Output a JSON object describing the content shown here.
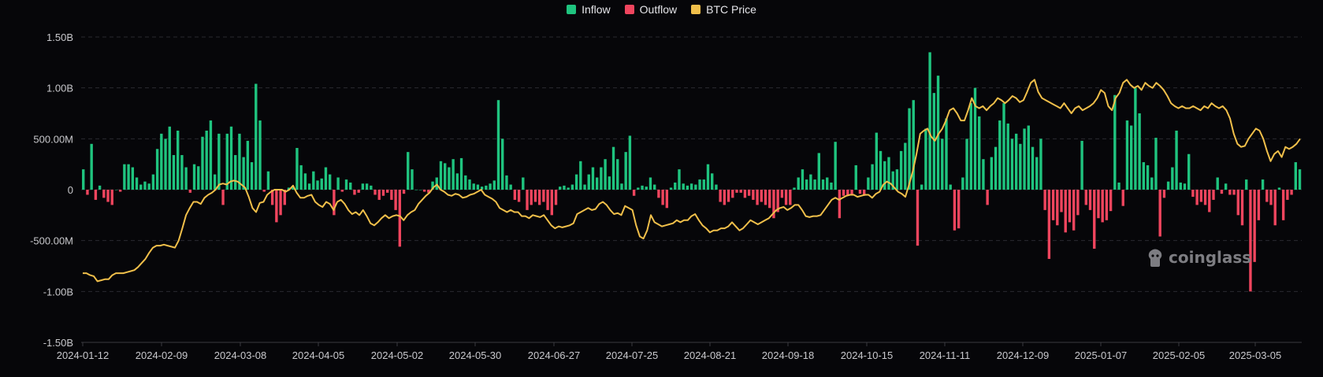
{
  "legend": [
    {
      "label": "Inflow",
      "color": "#1fc47f"
    },
    {
      "label": "Outflow",
      "color": "#f0455e"
    },
    {
      "label": "BTC Price",
      "color": "#f0bf4a"
    }
  ],
  "watermark": {
    "text": "coinglass",
    "icon": "coinglass-logo-icon"
  },
  "colors": {
    "background": "#060609",
    "grid": "#2a2a30",
    "axis_text": "#c8c8cc"
  },
  "chart_data": {
    "type": "bar",
    "y_ticks": [
      "1.50B",
      "1.00B",
      "500.00M",
      "0",
      "-500.00M",
      "-1.00B",
      "-1.50B"
    ],
    "ylim": [
      -1.5,
      1.5
    ],
    "y_unit": "billion USD",
    "x_ticks": [
      "2024-01-12",
      "2024-02-09",
      "2024-03-08",
      "2024-04-05",
      "2024-05-02",
      "2024-05-30",
      "2024-06-27",
      "2024-07-25",
      "2024-08-21",
      "2024-09-18",
      "2024-10-15",
      "2024-11-11",
      "2024-12-09",
      "2025-01-07",
      "2025-02-05",
      "2025-03-05"
    ],
    "flows": [
      0.2,
      -0.05,
      0.45,
      -0.1,
      0.04,
      -0.08,
      -0.12,
      -0.15,
      0,
      -0.02,
      0.25,
      0.25,
      0.22,
      0.12,
      0.05,
      0.08,
      0.06,
      0.15,
      0.4,
      0.55,
      0.5,
      0.62,
      0.34,
      0.58,
      0.34,
      0.22,
      -0.03,
      0.25,
      0.23,
      0.52,
      0.58,
      0.68,
      0.15,
      0.55,
      -0.15,
      0.55,
      0.62,
      0.34,
      0.55,
      0.32,
      0.48,
      0.27,
      1.04,
      0.68,
      -0.02,
      0.18,
      -0.15,
      -0.32,
      -0.25,
      -0.15,
      0.02,
      0.03,
      0.41,
      0.24,
      0.16,
      0.06,
      0.18,
      0.09,
      0.11,
      0.22,
      0.15,
      -0.25,
      0.12,
      -0.02,
      0.1,
      0.07,
      -0.05,
      -0.03,
      0.06,
      0.06,
      0.04,
      -0.05,
      -0.1,
      -0.06,
      -0.03,
      -0.1,
      -0.2,
      -0.56,
      -0.04,
      0.37,
      0.2,
      0,
      0,
      -0.02,
      -0.03,
      0.08,
      0.12,
      0.28,
      0.26,
      0.22,
      0.3,
      0.16,
      0.31,
      0.14,
      0.1,
      0.06,
      0.05,
      0.03,
      0.04,
      0.06,
      0.09,
      0.88,
      0.5,
      0.14,
      0.05,
      -0.1,
      -0.12,
      0.12,
      -0.2,
      -0.15,
      -0.12,
      -0.15,
      -0.12,
      -0.2,
      -0.25,
      -0.15,
      0.03,
      0.04,
      0.02,
      0.05,
      0.15,
      0.28,
      0.05,
      0.15,
      0.22,
      0.12,
      0.22,
      0.3,
      0.13,
      0.42,
      0.3,
      0.06,
      0.37,
      0.53,
      -0.06,
      0.02,
      0.04,
      0.03,
      0.12,
      0.05,
      -0.08,
      -0.15,
      -0.18,
      0.02,
      0.07,
      0.2,
      0.06,
      0.04,
      0.06,
      0.05,
      0.1,
      0.1,
      0.25,
      0.16,
      0.05,
      -0.12,
      -0.15,
      -0.12,
      -0.08,
      -0.03,
      -0.03,
      -0.08,
      -0.06,
      -0.1,
      -0.15,
      -0.12,
      -0.15,
      -0.18,
      -0.28,
      -0.22,
      -0.08,
      -0.15,
      -0.15,
      0.02,
      0.12,
      0.2,
      0.1,
      0.15,
      0.1,
      0.36,
      0.1,
      0.12,
      0.07,
      0.47,
      -0.28,
      -0.06,
      -0.06,
      -0.05,
      0.24,
      -0.04,
      -0.06,
      0.12,
      0.25,
      0.56,
      0.38,
      0.28,
      0.32,
      0.18,
      0.2,
      0.38,
      0.46,
      0.8,
      0.88,
      -0.55,
      0.05,
      0.6,
      1.35,
      0.95,
      1.12,
      0.5,
      0.7,
      0.05,
      -0.4,
      -0.38,
      0.12,
      0.5,
      0.85,
      1.0,
      0.72,
      0.3,
      -0.15,
      0.32,
      0.42,
      0.68,
      0.85,
      0.65,
      0.5,
      0.55,
      0.45,
      0.6,
      0.63,
      0.42,
      0.32,
      0.5,
      -0.2,
      -0.68,
      -0.3,
      -0.35,
      -0.22,
      -0.42,
      -0.32,
      -0.4,
      -0.25,
      0.48,
      -0.15,
      -0.2,
      -0.58,
      -0.28,
      -0.32,
      -0.3,
      -0.21,
      0.93,
      0.07,
      -0.16,
      0.68,
      0.63,
      1.0,
      0.75,
      0.27,
      0.24,
      0.12,
      0.51,
      -0.46,
      -0.08,
      0.08,
      0.22,
      0.58,
      0.07,
      0.06,
      0.35,
      -0.07,
      -0.15,
      -0.12,
      -0.15,
      -0.22,
      -0.1,
      0.12,
      -0.04,
      0.06,
      -0.05,
      -0.05,
      -0.25,
      -0.35,
      0.1,
      -1.0,
      -0.71,
      -0.3,
      0.1,
      -0.12,
      -0.15,
      -0.35,
      0.02,
      -0.3,
      -0.1,
      -0.05,
      0.27,
      0.2
    ],
    "btc_price_scaled": [
      -0.82,
      -0.82,
      -0.84,
      -0.85,
      -0.9,
      -0.89,
      -0.88,
      -0.88,
      -0.84,
      -0.82,
      -0.82,
      -0.82,
      -0.81,
      -0.8,
      -0.79,
      -0.76,
      -0.72,
      -0.68,
      -0.62,
      -0.57,
      -0.55,
      -0.55,
      -0.54,
      -0.55,
      -0.56,
      -0.57,
      -0.5,
      -0.38,
      -0.25,
      -0.18,
      -0.12,
      -0.12,
      -0.14,
      -0.08,
      -0.05,
      -0.03,
      0.0,
      0.05,
      0.06,
      0.05,
      0.08,
      0.09,
      0.08,
      0.05,
      0.02,
      -0.07,
      -0.18,
      -0.22,
      -0.13,
      -0.12,
      -0.05,
      -0.02,
      0.0,
      0.0,
      0.0,
      -0.02,
      0.0,
      0.04,
      -0.03,
      -0.08,
      -0.08,
      -0.06,
      -0.05,
      -0.12,
      -0.15,
      -0.17,
      -0.12,
      -0.14,
      -0.2,
      -0.12,
      -0.1,
      -0.14,
      -0.2,
      -0.24,
      -0.22,
      -0.25,
      -0.2,
      -0.26,
      -0.33,
      -0.35,
      -0.32,
      -0.28,
      -0.25,
      -0.28,
      -0.26,
      -0.25,
      -0.26,
      -0.3,
      -0.25,
      -0.22,
      -0.2,
      -0.14,
      -0.1,
      -0.06,
      -0.03,
      0.02,
      0.05,
      0.0,
      -0.02,
      -0.05,
      -0.06,
      -0.04,
      -0.05,
      -0.08,
      -0.07,
      -0.05,
      -0.04,
      -0.02,
      0.0,
      -0.05,
      -0.07,
      -0.09,
      -0.12,
      -0.18,
      -0.2,
      -0.22,
      -0.2,
      -0.22,
      -0.22,
      -0.26,
      -0.26,
      -0.28,
      -0.25,
      -0.26,
      -0.27,
      -0.25,
      -0.3,
      -0.35,
      -0.38,
      -0.36,
      -0.37,
      -0.36,
      -0.35,
      -0.33,
      -0.24,
      -0.22,
      -0.2,
      -0.18,
      -0.2,
      -0.19,
      -0.14,
      -0.12,
      -0.15,
      -0.2,
      -0.24,
      -0.23,
      -0.25,
      -0.16,
      -0.18,
      -0.2,
      -0.35,
      -0.46,
      -0.48,
      -0.4,
      -0.25,
      -0.32,
      -0.34,
      -0.36,
      -0.35,
      -0.34,
      -0.33,
      -0.3,
      -0.32,
      -0.3,
      -0.3,
      -0.26,
      -0.24,
      -0.3,
      -0.35,
      -0.38,
      -0.42,
      -0.4,
      -0.4,
      -0.38,
      -0.38,
      -0.36,
      -0.32,
      -0.36,
      -0.4,
      -0.38,
      -0.34,
      -0.3,
      -0.32,
      -0.34,
      -0.32,
      -0.3,
      -0.28,
      -0.24,
      -0.2,
      -0.18,
      -0.17,
      -0.2,
      -0.18,
      -0.15,
      -0.15,
      -0.2,
      -0.26,
      -0.27,
      -0.26,
      -0.26,
      -0.25,
      -0.2,
      -0.15,
      -0.1,
      -0.08,
      -0.1,
      -0.08,
      -0.06,
      -0.05,
      -0.05,
      -0.07,
      -0.06,
      -0.05,
      -0.05,
      -0.08,
      -0.04,
      -0.02,
      0.05,
      0.08,
      0.06,
      0.02,
      -0.02,
      -0.04,
      -0.07,
      0.05,
      0.18,
      0.35,
      0.55,
      0.58,
      0.6,
      0.52,
      0.48,
      0.55,
      0.6,
      0.68,
      0.78,
      0.8,
      0.75,
      0.68,
      0.68,
      0.78,
      0.9,
      0.82,
      0.8,
      0.82,
      0.78,
      0.82,
      0.85,
      0.9,
      0.88,
      0.85,
      0.88,
      0.92,
      0.9,
      0.86,
      0.88,
      0.96,
      1.05,
      1.08,
      0.96,
      0.9,
      0.88,
      0.86,
      0.84,
      0.82,
      0.8,
      0.85,
      0.8,
      0.75,
      0.8,
      0.82,
      0.78,
      0.8,
      0.82,
      0.85,
      0.9,
      0.98,
      0.95,
      0.82,
      0.78,
      0.9,
      0.95,
      1.05,
      1.08,
      1.03,
      1.0,
      1.02,
      0.98,
      1.05,
      1.02,
      1.0,
      1.05,
      1.02,
      0.98,
      0.92,
      0.85,
      0.82,
      0.8,
      0.82,
      0.8,
      0.8,
      0.82,
      0.8,
      0.78,
      0.82,
      0.8,
      0.85,
      0.82,
      0.8,
      0.82,
      0.78,
      0.7,
      0.55,
      0.45,
      0.42,
      0.43,
      0.5,
      0.55,
      0.6,
      0.58,
      0.5,
      0.38,
      0.28,
      0.35,
      0.38,
      0.32,
      0.42,
      0.4,
      0.42,
      0.45,
      0.5
    ]
  }
}
